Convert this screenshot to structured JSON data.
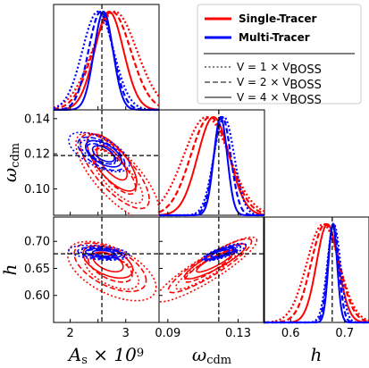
{
  "chart_data": {
    "type": "corner",
    "parameters": [
      {
        "key": "As",
        "label": "A_s × 10^9",
        "range": [
          1.7,
          3.6
        ],
        "ticks": [
          2,
          3
        ],
        "tick_labels": [
          "2",
          "3"
        ],
        "fiducial": 2.57
      },
      {
        "key": "wcdm",
        "label": "ω_cdm",
        "range": [
          0.085,
          0.145
        ],
        "ticks": [
          0.09,
          0.1,
          0.11,
          0.12,
          0.13,
          0.14
        ],
        "tick_labels": [
          "0.09",
          "0.10",
          "",
          "0.12",
          "0.13",
          "0.14"
        ],
        "fiducial": 0.119
      },
      {
        "key": "h",
        "label": "h",
        "range": [
          0.55,
          0.745
        ],
        "ticks": [
          0.6,
          0.65,
          0.7
        ],
        "tick_labels": [
          "0.6",
          "0.65",
          "0.7"
        ],
        "fiducial": 0.677
      }
    ],
    "axis_labels": {
      "x": [
        "A_s × 10^9",
        "ω_cdm",
        "h"
      ],
      "y": [
        "",
        "ω_cdm",
        "h"
      ],
      "x_ticks": [
        [
          "2",
          "3"
        ],
        [
          "0.09",
          "0.13"
        ],
        [
          "0.6",
          "0.7"
        ]
      ],
      "y_ticks": [
        [],
        [
          "0.10",
          "0.12",
          "0.14"
        ],
        [
          "0.60",
          "0.65",
          "0.70"
        ]
      ]
    },
    "legend": {
      "placement": "top-right",
      "tracers": [
        {
          "label": "Single-Tracer",
          "color": "#ff0000"
        },
        {
          "label": "Multi-Tracer",
          "color": "#0000ff"
        }
      ],
      "volumes": [
        {
          "label": "V = 1 × V_BOSS",
          "style": "dotted"
        },
        {
          "label": "V = 2 × V_BOSS",
          "style": "dashed"
        },
        {
          "label": "V = 4 × V_BOSS",
          "style": "solid"
        }
      ]
    },
    "marginals": {
      "As": [
        {
          "tracer": "Single-Tracer",
          "volume": 1,
          "mean": 2.8,
          "sigma": 0.4
        },
        {
          "tracer": "Single-Tracer",
          "volume": 2,
          "mean": 2.75,
          "sigma": 0.34
        },
        {
          "tracer": "Single-Tracer",
          "volume": 4,
          "mean": 2.7,
          "sigma": 0.26
        },
        {
          "tracer": "Multi-Tracer",
          "volume": 1,
          "mean": 2.5,
          "sigma": 0.28
        },
        {
          "tracer": "Multi-Tracer",
          "volume": 2,
          "mean": 2.55,
          "sigma": 0.22
        },
        {
          "tracer": "Multi-Tracer",
          "volume": 4,
          "mean": 2.6,
          "sigma": 0.17
        }
      ],
      "wcdm": [
        {
          "tracer": "Single-Tracer",
          "volume": 1,
          "mean": 0.112,
          "sigma": 0.013
        },
        {
          "tracer": "Single-Tracer",
          "volume": 2,
          "mean": 0.114,
          "sigma": 0.011
        },
        {
          "tracer": "Single-Tracer",
          "volume": 4,
          "mean": 0.116,
          "sigma": 0.009
        },
        {
          "tracer": "Multi-Tracer",
          "volume": 1,
          "mean": 0.122,
          "sigma": 0.0058
        },
        {
          "tracer": "Multi-Tracer",
          "volume": 2,
          "mean": 0.121,
          "sigma": 0.0048
        },
        {
          "tracer": "Multi-Tracer",
          "volume": 4,
          "mean": 0.12,
          "sigma": 0.0038
        }
      ],
      "h": [
        {
          "tracer": "Single-Tracer",
          "volume": 1,
          "mean": 0.66,
          "sigma": 0.03
        },
        {
          "tracer": "Single-Tracer",
          "volume": 2,
          "mean": 0.664,
          "sigma": 0.026
        },
        {
          "tracer": "Single-Tracer",
          "volume": 4,
          "mean": 0.668,
          "sigma": 0.02
        },
        {
          "tracer": "Multi-Tracer",
          "volume": 1,
          "mean": 0.68,
          "sigma": 0.012
        },
        {
          "tracer": "Multi-Tracer",
          "volume": 2,
          "mean": 0.679,
          "sigma": 0.01
        },
        {
          "tracer": "Multi-Tracer",
          "volume": 4,
          "mean": 0.678,
          "sigma": 0.008
        }
      ]
    },
    "contours": {
      "As_wcdm": [
        {
          "tracer": "Single-Tracer",
          "volume": 1,
          "center": [
            2.85,
            0.107
          ],
          "sx": 0.3,
          "sy": 0.01,
          "rho": -0.75
        },
        {
          "tracer": "Single-Tracer",
          "volume": 2,
          "center": [
            2.8,
            0.11
          ],
          "sx": 0.25,
          "sy": 0.0085,
          "rho": -0.75
        },
        {
          "tracer": "Single-Tracer",
          "volume": 4,
          "center": [
            2.75,
            0.115
          ],
          "sx": 0.18,
          "sy": 0.0065,
          "rho": -0.7
        },
        {
          "tracer": "Multi-Tracer",
          "volume": 1,
          "center": [
            2.52,
            0.121
          ],
          "sx": 0.22,
          "sy": 0.0045,
          "rho": -0.6
        },
        {
          "tracer": "Multi-Tracer",
          "volume": 2,
          "center": [
            2.56,
            0.12
          ],
          "sx": 0.17,
          "sy": 0.0038,
          "rho": -0.6
        },
        {
          "tracer": "Multi-Tracer",
          "volume": 4,
          "center": [
            2.6,
            0.12
          ],
          "sx": 0.13,
          "sy": 0.003,
          "rho": -0.55
        }
      ],
      "As_h": [
        {
          "tracer": "Single-Tracer",
          "volume": 1,
          "center": [
            2.75,
            0.645
          ],
          "sx": 0.32,
          "sy": 0.022,
          "rho": -0.55
        },
        {
          "tracer": "Single-Tracer",
          "volume": 2,
          "center": [
            2.72,
            0.652
          ],
          "sx": 0.26,
          "sy": 0.018,
          "rho": -0.55
        },
        {
          "tracer": "Single-Tracer",
          "volume": 4,
          "center": [
            2.68,
            0.662
          ],
          "sx": 0.18,
          "sy": 0.012,
          "rho": -0.5
        },
        {
          "tracer": "Multi-Tracer",
          "volume": 1,
          "center": [
            2.52,
            0.679
          ],
          "sx": 0.22,
          "sy": 0.0055,
          "rho": -0.35
        },
        {
          "tracer": "Multi-Tracer",
          "volume": 2,
          "center": [
            2.56,
            0.678
          ],
          "sx": 0.17,
          "sy": 0.0045,
          "rho": -0.35
        },
        {
          "tracer": "Multi-Tracer",
          "volume": 4,
          "center": [
            2.6,
            0.678
          ],
          "sx": 0.13,
          "sy": 0.0035,
          "rho": -0.3
        }
      ],
      "wcdm_h": [
        {
          "tracer": "Single-Tracer",
          "volume": 1,
          "center": [
            0.112,
            0.648
          ],
          "sx": 0.0115,
          "sy": 0.024,
          "rho": 0.9
        },
        {
          "tracer": "Single-Tracer",
          "volume": 2,
          "center": [
            0.114,
            0.655
          ],
          "sx": 0.0095,
          "sy": 0.02,
          "rho": 0.9
        },
        {
          "tracer": "Single-Tracer",
          "volume": 4,
          "center": [
            0.117,
            0.663
          ],
          "sx": 0.007,
          "sy": 0.013,
          "rho": 0.88
        },
        {
          "tracer": "Multi-Tracer",
          "volume": 1,
          "center": [
            0.122,
            0.68
          ],
          "sx": 0.005,
          "sy": 0.0065,
          "rho": 0.8
        },
        {
          "tracer": "Multi-Tracer",
          "volume": 2,
          "center": [
            0.121,
            0.679
          ],
          "sx": 0.0042,
          "sy": 0.0055,
          "rho": 0.8
        },
        {
          "tracer": "Multi-Tracer",
          "volume": 4,
          "center": [
            0.12,
            0.678
          ],
          "sx": 0.0034,
          "sy": 0.0044,
          "rho": 0.78
        }
      ]
    },
    "colors": {
      "Single-Tracer": "#ff0000",
      "Multi-Tracer": "#0000ff"
    }
  }
}
